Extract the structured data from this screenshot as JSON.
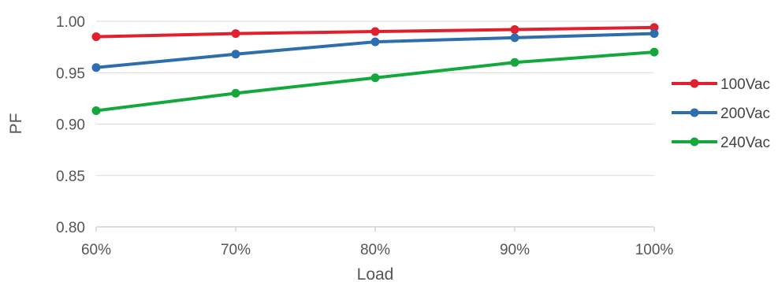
{
  "chart_data": {
    "type": "line",
    "title": "",
    "xlabel": "Load",
    "ylabel": "PF",
    "categories": [
      "60%",
      "70%",
      "80%",
      "90%",
      "100%"
    ],
    "ylim": [
      0.8,
      1.0
    ],
    "yticks": [
      "0.80",
      "0.85",
      "0.90",
      "0.95",
      "1.00"
    ],
    "yticks_values": [
      0.8,
      0.85,
      0.9,
      0.95,
      1.0
    ],
    "grid": true,
    "legend": "right",
    "series": [
      {
        "name": "100Vac",
        "color": "#e0202e",
        "values": [
          0.985,
          0.988,
          0.99,
          0.992,
          0.994
        ]
      },
      {
        "name": "200Vac",
        "color": "#2e6ead",
        "values": [
          0.955,
          0.968,
          0.98,
          0.984,
          0.988
        ]
      },
      {
        "name": "240Vac",
        "color": "#14a83c",
        "values": [
          0.913,
          0.93,
          0.945,
          0.96,
          0.97
        ]
      }
    ]
  }
}
